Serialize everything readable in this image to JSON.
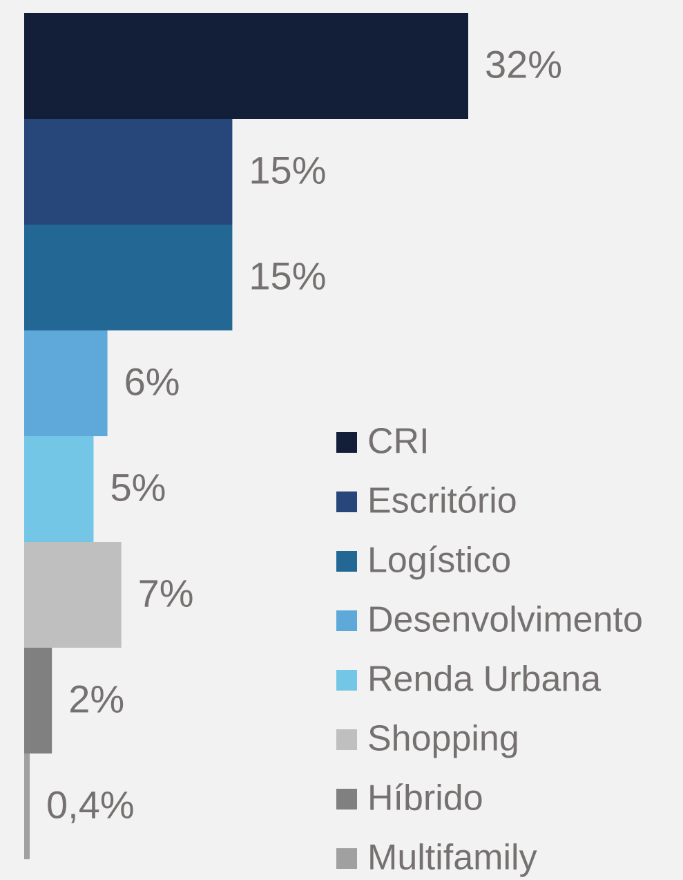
{
  "chart_data": {
    "type": "bar",
    "orientation": "horizontal",
    "categories": [
      "CRI",
      "Escritório",
      "Logístico",
      "Desenvolvimento",
      "Renda Urbana",
      "Shopping",
      "Híbrido",
      "Multifamily"
    ],
    "values": [
      32,
      15,
      15,
      6,
      5,
      7,
      2,
      0.4
    ],
    "value_labels": [
      "32%",
      "15%",
      "15%",
      "6%",
      "5%",
      "7%",
      "2%",
      "0,4%"
    ],
    "colors": [
      "#131f38",
      "#27467a",
      "#236895",
      "#5fa8da",
      "#74c6e6",
      "#bfbfbf",
      "#808080",
      "#a0a0a0"
    ],
    "legend": "right"
  }
}
